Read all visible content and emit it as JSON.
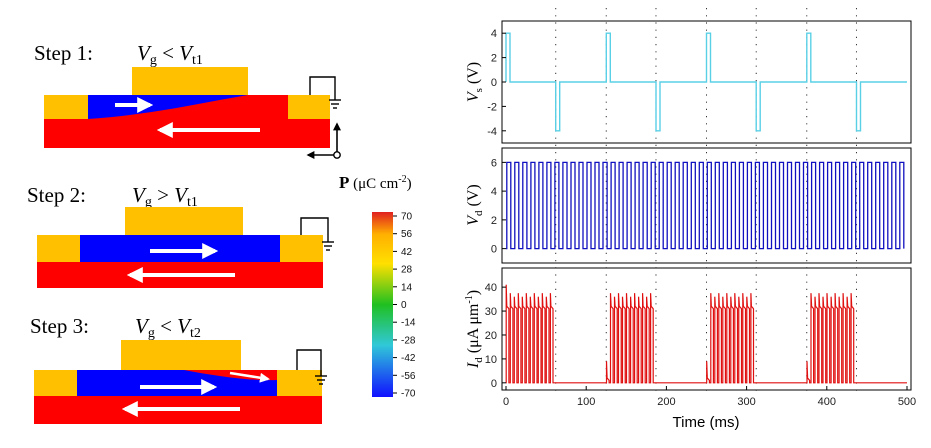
{
  "steps": [
    {
      "label": "Step 1:",
      "cond": {
        "v": "V",
        "sub": "g",
        "op": " < ",
        "t": "V",
        "tsub": "t1"
      }
    },
    {
      "label": "Step 2:",
      "cond": {
        "v": "V",
        "sub": "g",
        "op": " > ",
        "t": "V",
        "tsub": "t1"
      }
    },
    {
      "label": "Step 3:",
      "cond": {
        "v": "V",
        "sub": "g",
        "op": " < ",
        "t": "V",
        "tsub": "t2"
      }
    }
  ],
  "colorbar": {
    "title_main": "P",
    "title_unit": " (μC cm",
    "title_sup": "-2",
    "title_close": ")",
    "ticks": [
      "70",
      "56",
      "42",
      "28",
      "14",
      "0",
      "-14",
      "-28",
      "-42",
      "-56",
      "-70"
    ],
    "colors": [
      "#e02020",
      "#ffb000",
      "#ffe000",
      "#20c020",
      "#30c8d8",
      "#1010ff"
    ]
  },
  "colors": {
    "electrode": "#ffc000",
    "pos_polar": "#ff0000",
    "neg_polar": "#0000ff",
    "vs_trace": "#5ad0e6",
    "vd_trace": "#1010c0",
    "id_trace": "#e01010"
  },
  "chart_data": [
    {
      "type": "line",
      "ylabel": {
        "v": "V",
        "sub": "s",
        "unit": " (V)"
      },
      "xlim": [
        0,
        500
      ],
      "ylim": [
        -5,
        5
      ],
      "yticks": [
        "4",
        "2",
        "0",
        "-2",
        "-4"
      ],
      "pulse_period_ms": 125,
      "pulse_pos": {
        "start": 0,
        "end": 5,
        "value": 4
      },
      "pulse_neg": {
        "start": 62,
        "end": 67,
        "value": -4
      },
      "baseline": 0,
      "dotted_lines_ms": [
        62,
        125,
        187,
        250,
        312,
        375,
        437
      ]
    },
    {
      "type": "line",
      "ylabel": {
        "v": "V",
        "sub": "d",
        "unit": " (V)"
      },
      "xlim": [
        0,
        500
      ],
      "ylim": [
        -1,
        7
      ],
      "yticks": [
        "6",
        "4",
        "2",
        "0"
      ],
      "square_period_ms": 10,
      "high": 6,
      "low": 0
    },
    {
      "type": "line",
      "ylabel": {
        "v": "I",
        "sub": "d",
        "unit": " (μA μm",
        "sup": "-1",
        "close": ")"
      },
      "xlabel": "Time (ms)",
      "xlim": [
        0,
        500
      ],
      "ylim": [
        -3,
        48
      ],
      "yticks": [
        "40",
        "30",
        "20",
        "10",
        "0"
      ],
      "xticks": [
        "0",
        "100",
        "200",
        "300",
        "400",
        "500"
      ],
      "bursts": [
        {
          "start": 0,
          "end": 62,
          "peak_first": 41,
          "peak": 36,
          "plateau": 32
        },
        {
          "start": 125,
          "end": 187,
          "peak_first": 9,
          "peak": 36,
          "plateau": 32
        },
        {
          "start": 250,
          "end": 312,
          "peak_first": 9,
          "peak": 36,
          "plateau": 32
        },
        {
          "start": 375,
          "end": 437,
          "peak_first": 9,
          "peak": 36,
          "plateau": 32
        }
      ]
    }
  ]
}
